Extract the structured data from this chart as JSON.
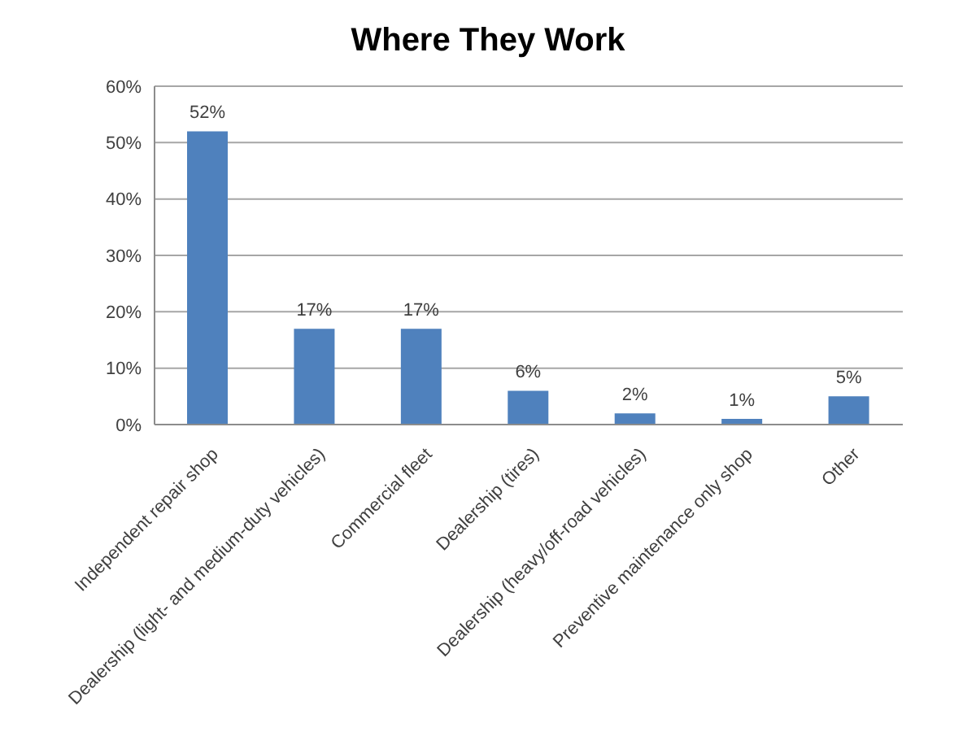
{
  "chart_data": {
    "type": "bar",
    "title": "Where They Work",
    "categories": [
      "Independent repair shop",
      "Dealership (light- and medium-duty vehicles)",
      "Commercial fleet",
      "Dealership (tires)",
      "Dealership (heavy/off-road vehicles)",
      "Preventive maintenance only shop",
      "Other"
    ],
    "values": [
      52,
      17,
      17,
      6,
      2,
      1,
      5
    ],
    "value_labels": [
      "52%",
      "17%",
      "17%",
      "6%",
      "2%",
      "1%",
      "5%"
    ],
    "color": "#4f81bd",
    "ylim": [
      0,
      60
    ],
    "yticks": [
      {
        "value": 0,
        "label": "0%"
      },
      {
        "value": 10,
        "label": "10%"
      },
      {
        "value": 20,
        "label": "20%"
      },
      {
        "value": 30,
        "label": "30%"
      },
      {
        "value": 40,
        "label": "40%"
      },
      {
        "value": 50,
        "label": "50%"
      },
      {
        "value": 60,
        "label": "60%"
      }
    ],
    "grid": "y"
  }
}
